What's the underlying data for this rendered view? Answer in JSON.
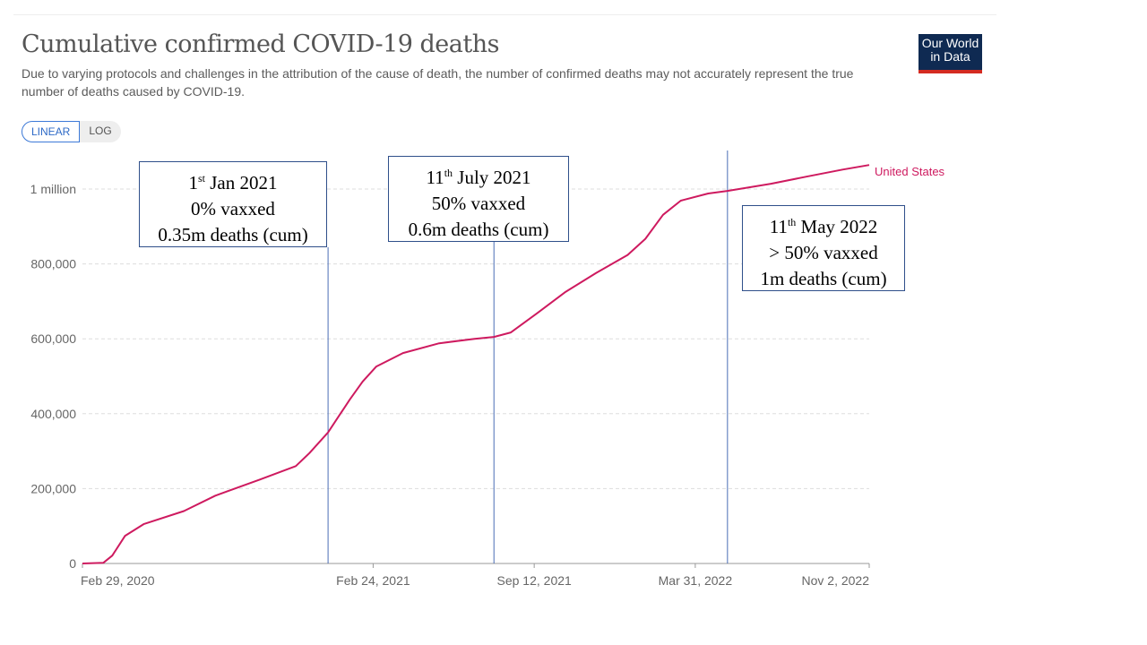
{
  "header": {
    "title": "Cumulative confirmed COVID-19 deaths",
    "subtitle": "Due to varying protocols and challenges in the attribution of the cause of death, the number of confirmed deaths may not accurately represent the true number of deaths caused by COVID-19.",
    "logo": "Our World in Data"
  },
  "toggle": {
    "linear": "LINEAR",
    "log": "LOG"
  },
  "chart_data": {
    "type": "line",
    "title": "Cumulative confirmed COVID-19 deaths",
    "x_unit": "days since Feb 29, 2020",
    "xlim": [
      0,
      977
    ],
    "ylim": [
      0,
      1000000
    ],
    "grid": true,
    "x_ticks": [
      {
        "day": 0,
        "label": "Feb 29, 2020"
      },
      {
        "day": 361,
        "label": "Feb 24, 2021"
      },
      {
        "day": 561,
        "label": "Sep 12, 2021"
      },
      {
        "day": 761,
        "label": "Mar 31, 2022"
      },
      {
        "day": 977,
        "label": "Nov 2, 2022"
      }
    ],
    "y_ticks": [
      {
        "value": 0,
        "label": "0"
      },
      {
        "value": 200000,
        "label": "200,000"
      },
      {
        "value": 400000,
        "label": "400,000"
      },
      {
        "value": 600000,
        "label": "600,000"
      },
      {
        "value": 800000,
        "label": "800,000"
      },
      {
        "value": 1000000,
        "label": "1 million"
      }
    ],
    "series": [
      {
        "name": "United States",
        "color": "#ce1a5f",
        "points": [
          [
            0,
            0
          ],
          [
            26,
            2000
          ],
          [
            37,
            21000
          ],
          [
            53,
            74000
          ],
          [
            76,
            105000
          ],
          [
            126,
            140000
          ],
          [
            165,
            181000
          ],
          [
            220,
            224000
          ],
          [
            265,
            260000
          ],
          [
            282,
            295000
          ],
          [
            305,
            350000
          ],
          [
            332,
            438000
          ],
          [
            348,
            486000
          ],
          [
            365,
            526000
          ],
          [
            398,
            562000
          ],
          [
            443,
            588000
          ],
          [
            487,
            600000
          ],
          [
            511,
            605000
          ],
          [
            532,
            617000
          ],
          [
            565,
            669000
          ],
          [
            599,
            724000
          ],
          [
            638,
            776000
          ],
          [
            677,
            824000
          ],
          [
            699,
            867000
          ],
          [
            721,
            931000
          ],
          [
            743,
            969000
          ],
          [
            777,
            988000
          ],
          [
            801,
            995000
          ],
          [
            855,
            1014000
          ],
          [
            899,
            1033000
          ],
          [
            944,
            1052000
          ],
          [
            977,
            1064000
          ]
        ]
      }
    ],
    "annotations": [
      {
        "day": 305,
        "line1_num": "1",
        "line1_sup": "st",
        "line1_rest": " Jan 2021",
        "line2": "0% vaxxed",
        "line3": "0.35m deaths (cum)"
      },
      {
        "day": 511,
        "line1_num": "11",
        "line1_sup": "th",
        "line1_rest": " July 2021",
        "line2": "50% vaxxed",
        "line3": "0.6m deaths (cum)"
      },
      {
        "day": 801,
        "line1_num": "11",
        "line1_sup": "th",
        "line1_rest": " May 2022",
        "line2": "> 50% vaxxed",
        "line3": "1m deaths (cum)"
      }
    ]
  }
}
